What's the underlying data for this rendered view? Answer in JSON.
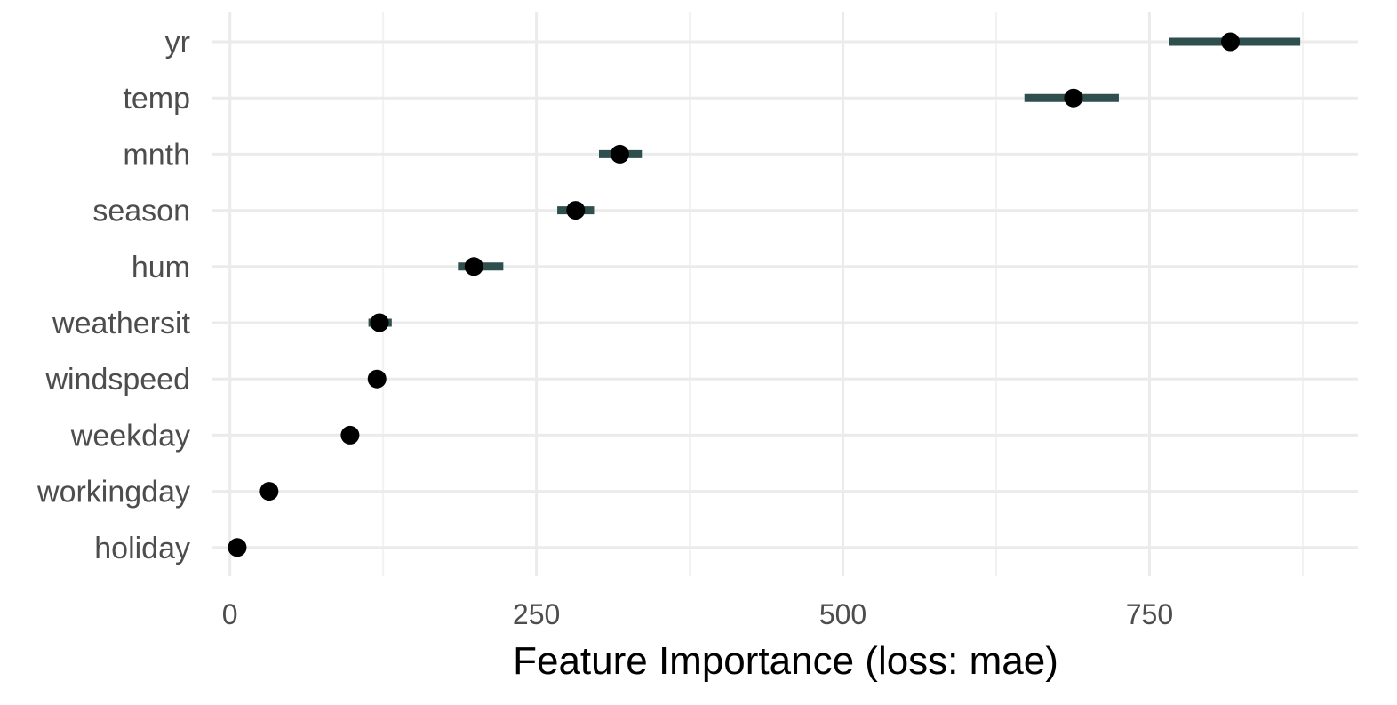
{
  "chart_data": {
    "type": "scatter",
    "title": "",
    "xlabel": "Feature Importance (loss: mae)",
    "ylabel": "",
    "xlim": [
      -15,
      920
    ],
    "x_ticks": [
      0,
      250,
      500,
      750
    ],
    "x_minor_ticks": [
      125,
      375,
      625,
      875
    ],
    "grid": true,
    "legend": "none",
    "features": [
      "yr",
      "temp",
      "mnth",
      "season",
      "hum",
      "weathersit",
      "windspeed",
      "weekday",
      "workingday",
      "holiday"
    ],
    "values": [
      816,
      688,
      318,
      282,
      199,
      122,
      120,
      98,
      32,
      6
    ],
    "interval_low": [
      766,
      648,
      301,
      267,
      186,
      113,
      116,
      94,
      29,
      4
    ],
    "interval_high": [
      873,
      725,
      336,
      297,
      223,
      132,
      123,
      101,
      35,
      8
    ],
    "colors": {
      "point": "#000000",
      "interval": "#2f4f4f"
    }
  }
}
